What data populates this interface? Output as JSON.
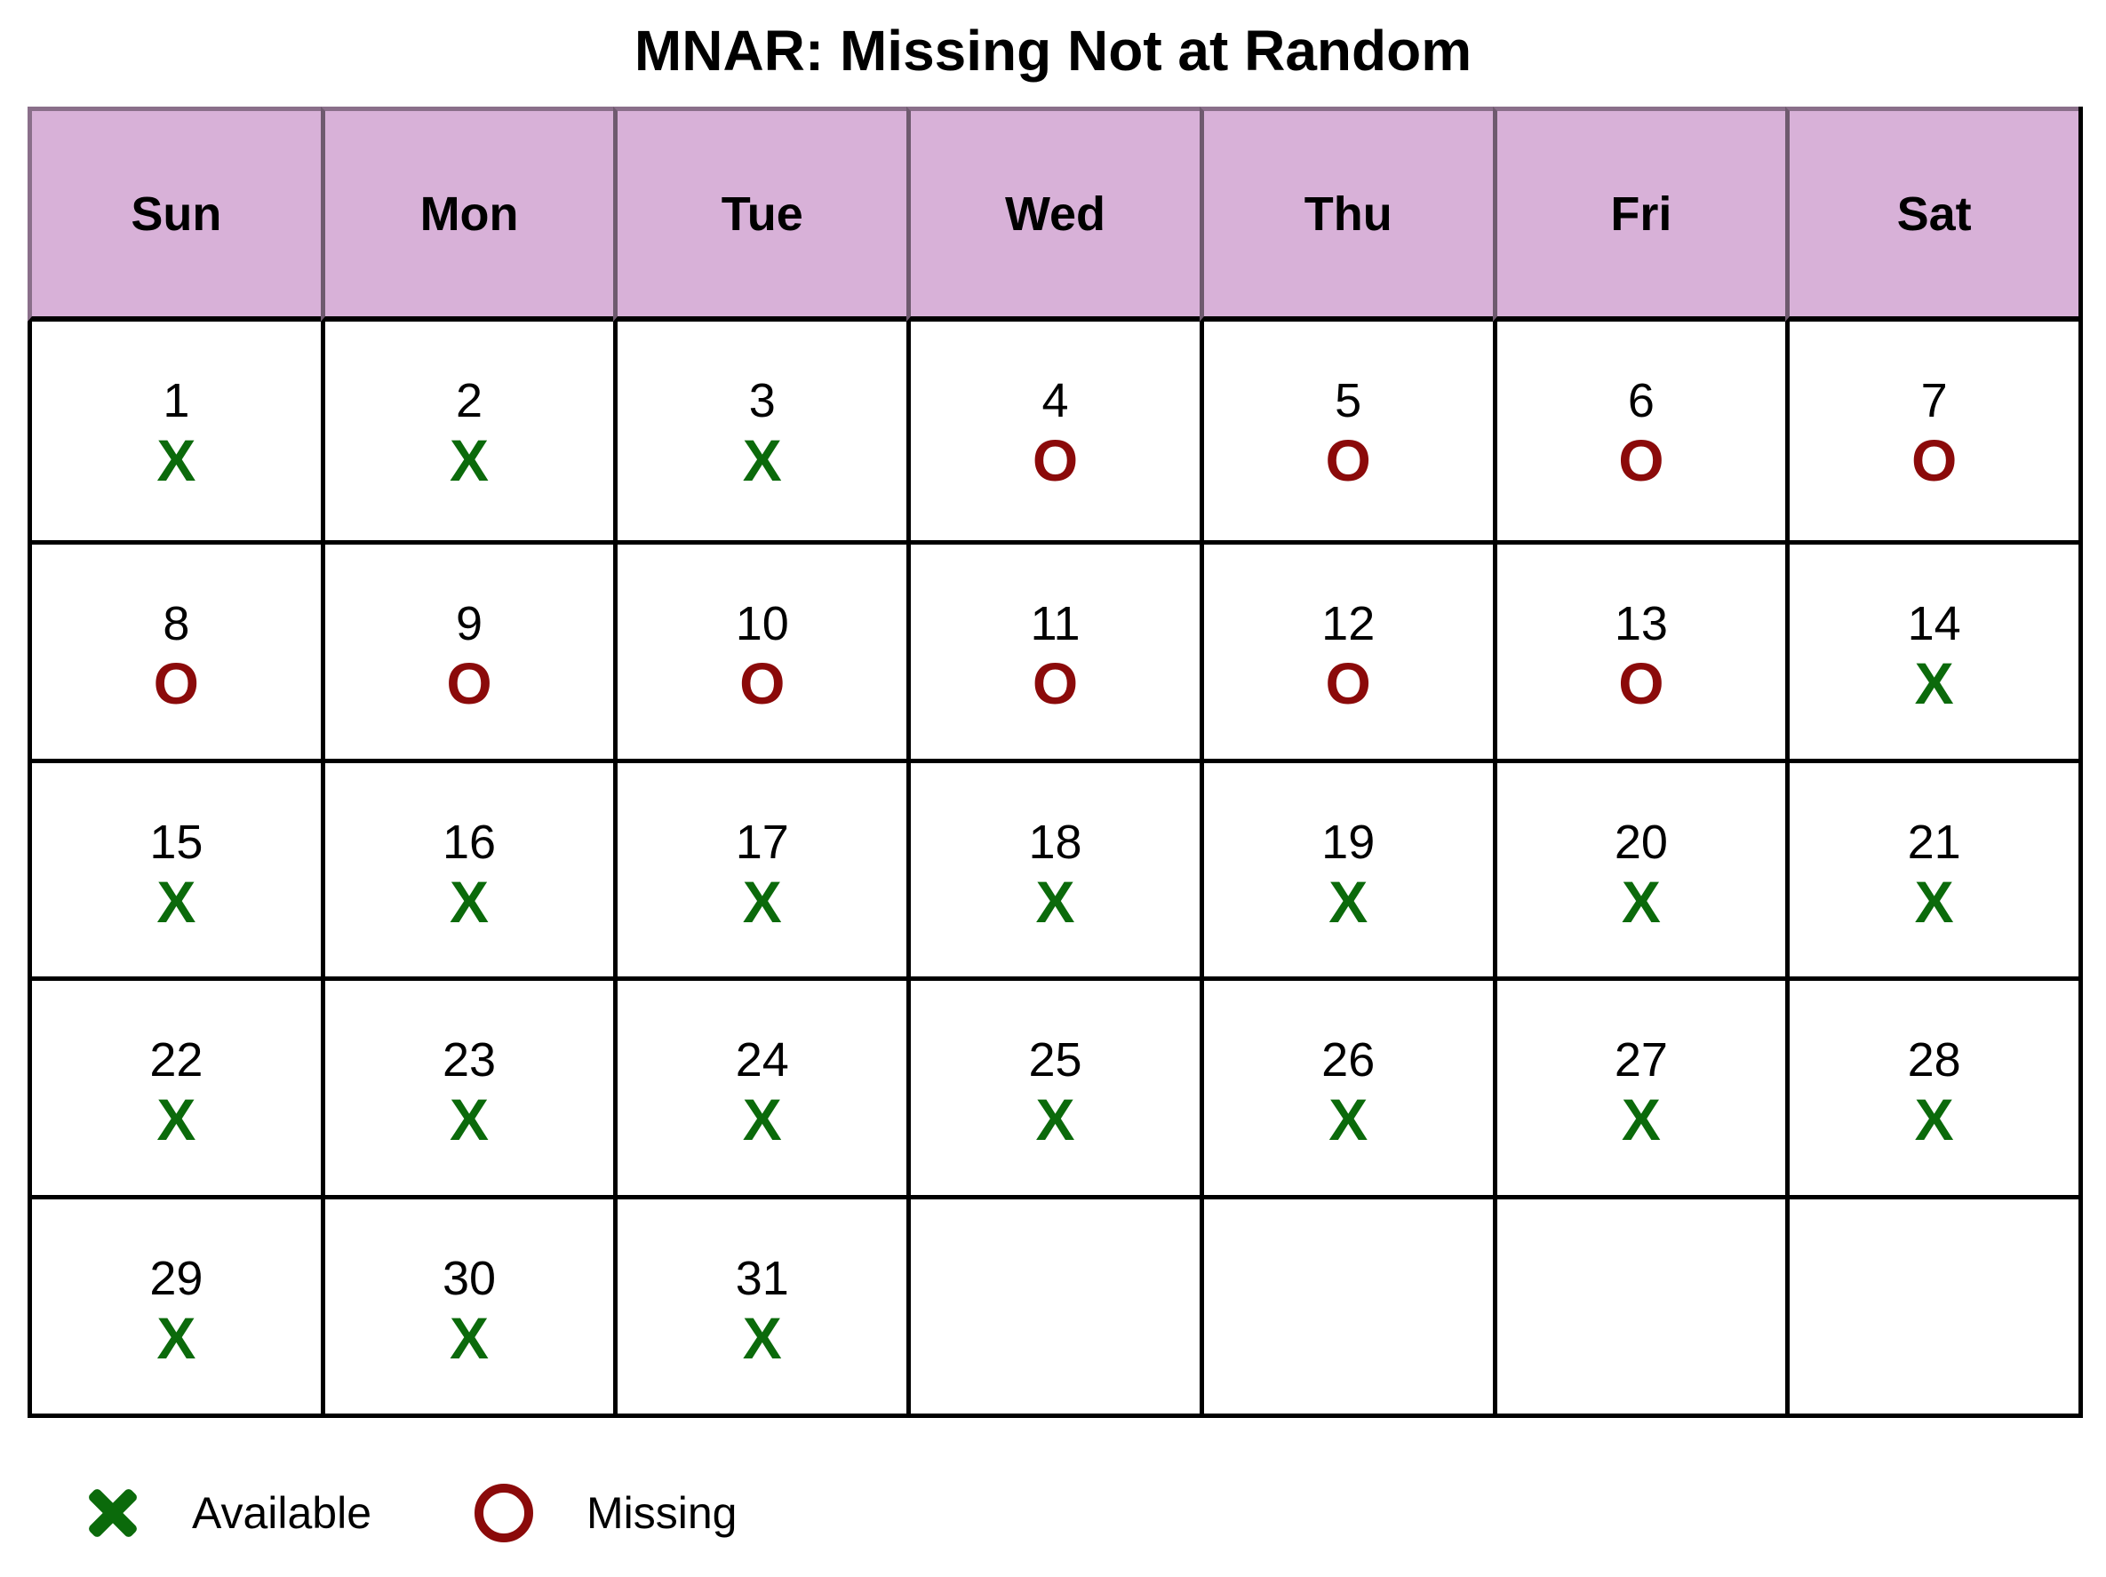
{
  "title": "MNAR: Missing Not at Random",
  "days_of_week": [
    "Sun",
    "Mon",
    "Tue",
    "Wed",
    "Thu",
    "Fri",
    "Sat"
  ],
  "marks": {
    "available": "X",
    "missing": "O"
  },
  "colors": {
    "header_bg": "#d8b1d8",
    "available": "#0b6a0b",
    "missing": "#8b0a0a"
  },
  "weeks": [
    [
      {
        "day": "1",
        "status": "available"
      },
      {
        "day": "2",
        "status": "available"
      },
      {
        "day": "3",
        "status": "available"
      },
      {
        "day": "4",
        "status": "missing"
      },
      {
        "day": "5",
        "status": "missing"
      },
      {
        "day": "6",
        "status": "missing"
      },
      {
        "day": "7",
        "status": "missing"
      }
    ],
    [
      {
        "day": "8",
        "status": "missing"
      },
      {
        "day": "9",
        "status": "missing"
      },
      {
        "day": "10",
        "status": "missing"
      },
      {
        "day": "11",
        "status": "missing"
      },
      {
        "day": "12",
        "status": "missing"
      },
      {
        "day": "13",
        "status": "missing"
      },
      {
        "day": "14",
        "status": "available"
      }
    ],
    [
      {
        "day": "15",
        "status": "available"
      },
      {
        "day": "16",
        "status": "available"
      },
      {
        "day": "17",
        "status": "available"
      },
      {
        "day": "18",
        "status": "available"
      },
      {
        "day": "19",
        "status": "available"
      },
      {
        "day": "20",
        "status": "available"
      },
      {
        "day": "21",
        "status": "available"
      }
    ],
    [
      {
        "day": "22",
        "status": "available"
      },
      {
        "day": "23",
        "status": "available"
      },
      {
        "day": "24",
        "status": "available"
      },
      {
        "day": "25",
        "status": "available"
      },
      {
        "day": "26",
        "status": "available"
      },
      {
        "day": "27",
        "status": "available"
      },
      {
        "day": "28",
        "status": "available"
      }
    ],
    [
      {
        "day": "29",
        "status": "available"
      },
      {
        "day": "30",
        "status": "available"
      },
      {
        "day": "31",
        "status": "available"
      },
      null,
      null,
      null,
      null
    ]
  ],
  "legend": {
    "available": {
      "label": "Available",
      "icon": "x-mark-icon"
    },
    "missing": {
      "label": "Missing",
      "icon": "circle-icon"
    }
  }
}
